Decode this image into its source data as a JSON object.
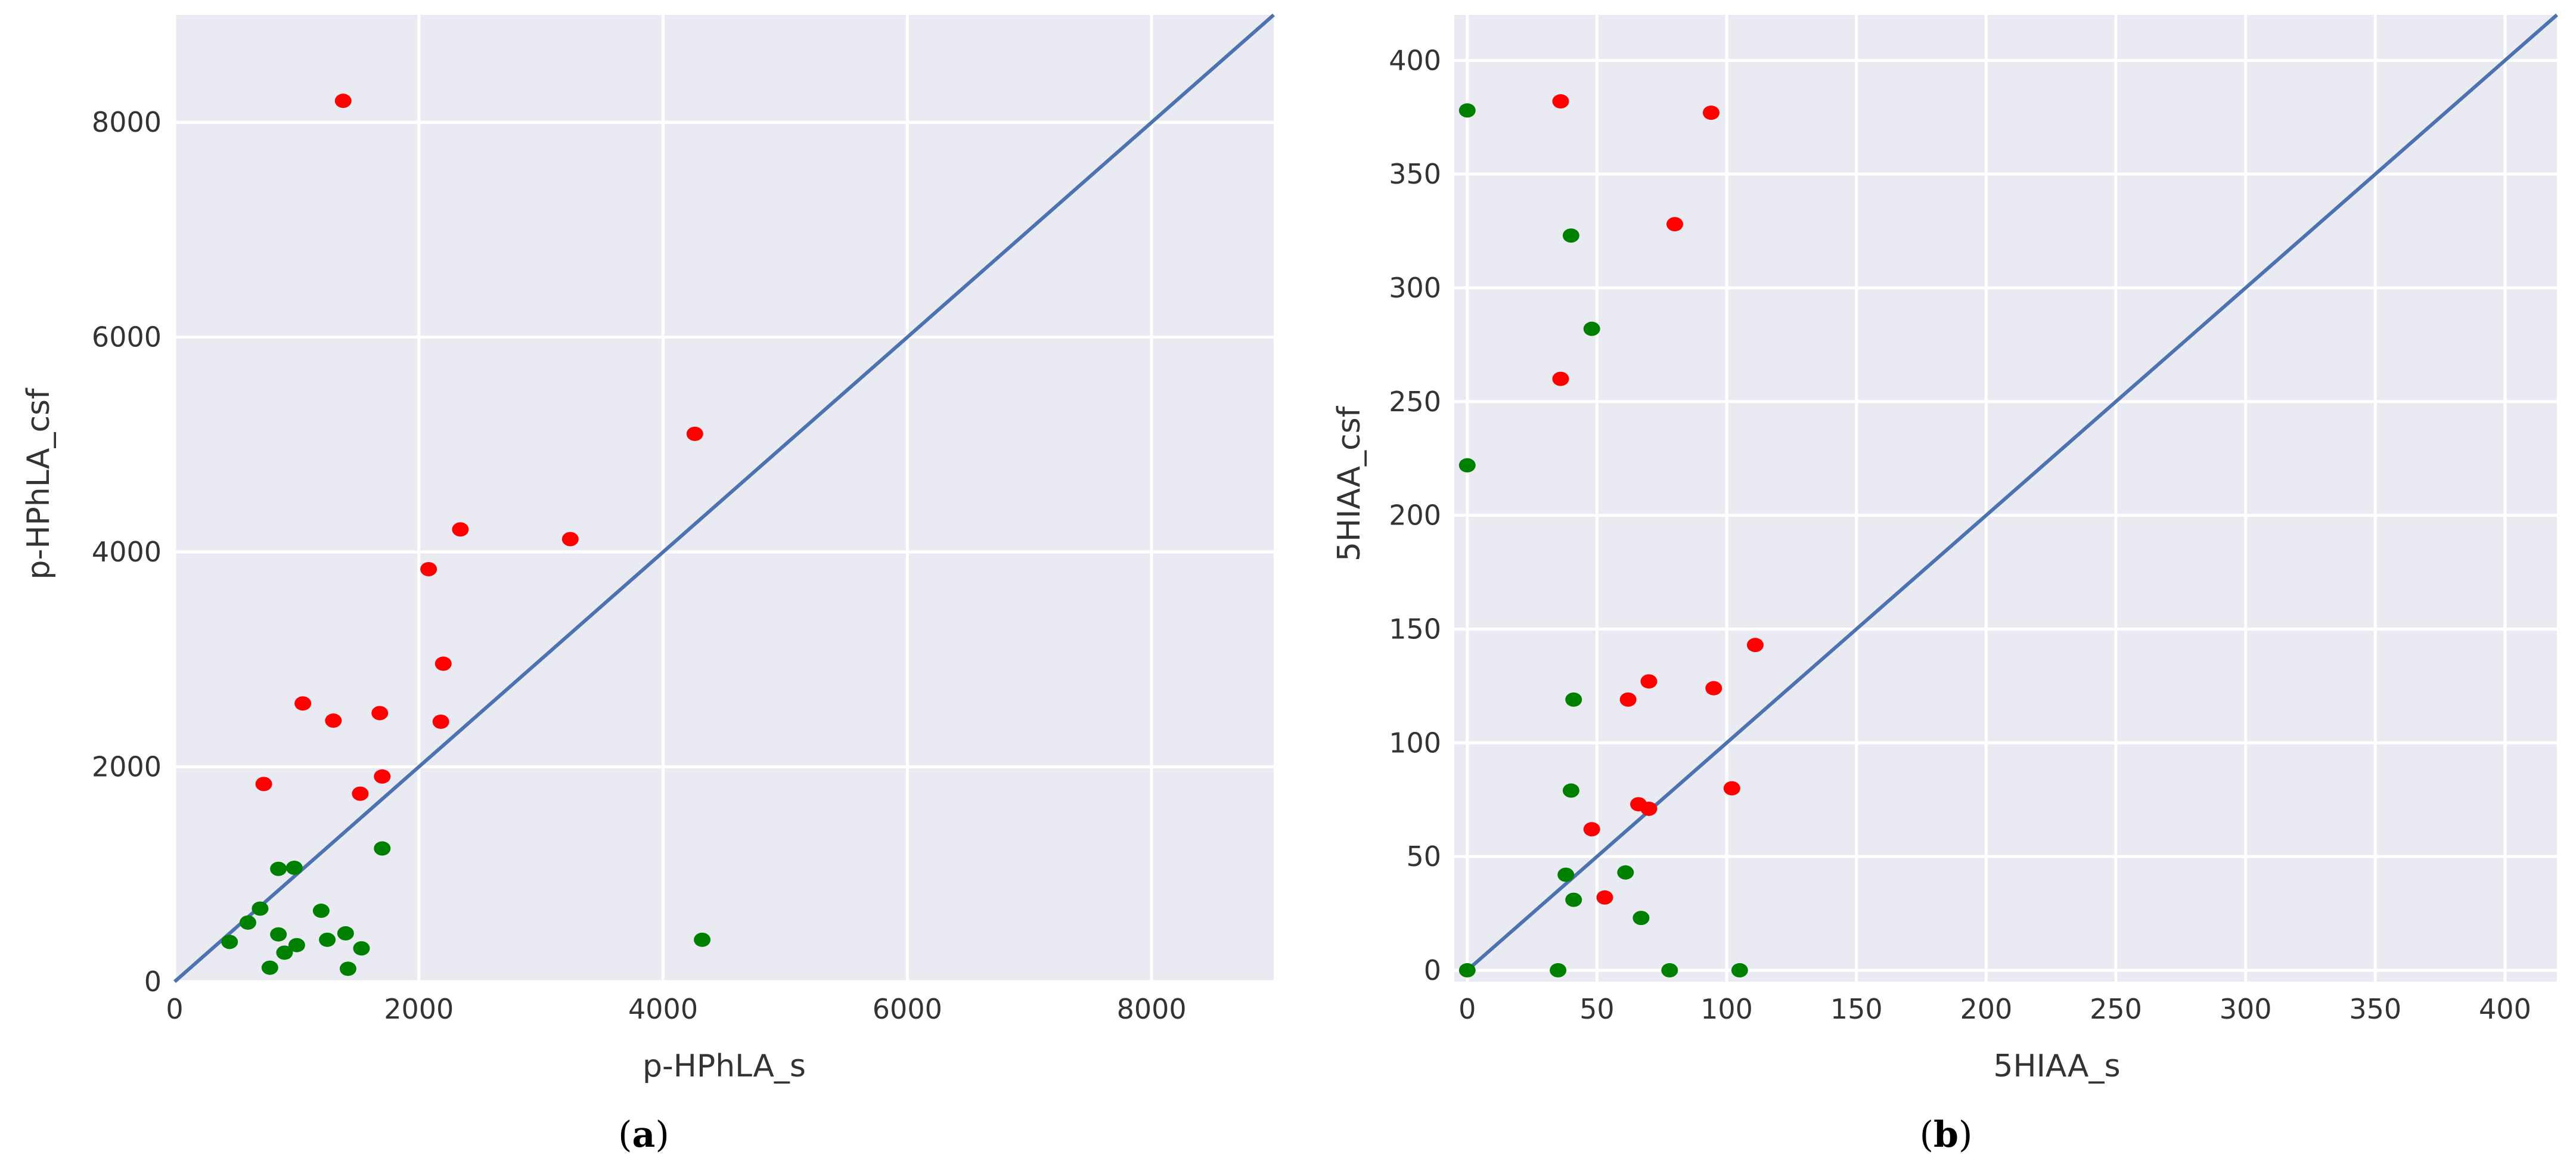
{
  "colors": {
    "background": "#eaeaf2",
    "grid": "#ffffff",
    "line": "#4c72b0",
    "above": "#ff0000",
    "below": "#008000"
  },
  "chart_data": [
    {
      "type": "scatter",
      "panel": {
        "open": "(",
        "letter": "a",
        "close": ")"
      },
      "xlabel": "p-HPhLA_s",
      "ylabel": "p-HPhLA_csf",
      "xlim": [
        0,
        9000
      ],
      "ylim": [
        0,
        9000
      ],
      "xticks": [
        0,
        2000,
        4000,
        6000,
        8000
      ],
      "yticks": [
        0,
        2000,
        4000,
        6000,
        8000
      ],
      "xtick_labels": [
        "0",
        "2000",
        "4000",
        "6000",
        "8000"
      ],
      "ytick_labels": [
        "0",
        "2000",
        "4000",
        "6000",
        "8000"
      ],
      "reference_line": {
        "from": [
          0,
          0
        ],
        "to": [
          9000,
          9000
        ]
      },
      "series": [
        {
          "name": "red",
          "color": "#ff0000",
          "x": [
            1380,
            4260,
            2340,
            3240,
            2080,
            2200,
            1050,
            1300,
            1680,
            2180,
            730,
            1700,
            1520
          ],
          "y": [
            8200,
            5100,
            4210,
            4120,
            3840,
            2960,
            2590,
            2430,
            2500,
            2420,
            1840,
            1910,
            1750
          ]
        },
        {
          "name": "green",
          "color": "#008000",
          "x": [
            1700,
            850,
            980,
            700,
            600,
            450,
            1200,
            850,
            1000,
            900,
            1250,
            1400,
            1530,
            4320,
            780,
            1420
          ],
          "y": [
            1240,
            1050,
            1060,
            680,
            550,
            370,
            660,
            440,
            340,
            270,
            390,
            450,
            310,
            390,
            130,
            120
          ]
        }
      ]
    },
    {
      "type": "scatter",
      "panel": {
        "open": "(",
        "letter": "b",
        "close": ")"
      },
      "xlabel": "5HIAA_s",
      "ylabel": "5HIAA_csf",
      "xlim": [
        -5,
        420
      ],
      "ylim": [
        -5,
        420
      ],
      "xticks": [
        0,
        50,
        100,
        150,
        200,
        250,
        300,
        350,
        400
      ],
      "yticks": [
        0,
        50,
        100,
        150,
        200,
        250,
        300,
        350,
        400
      ],
      "xtick_labels": [
        "0",
        "50",
        "100",
        "150",
        "200",
        "250",
        "300",
        "350",
        "400"
      ],
      "ytick_labels": [
        "0",
        "50",
        "100",
        "150",
        "200",
        "250",
        "300",
        "350",
        "400"
      ],
      "reference_line": {
        "from": [
          0,
          0
        ],
        "to": [
          420,
          420
        ]
      },
      "series": [
        {
          "name": "red",
          "color": "#ff0000",
          "x": [
            36,
            94,
            80,
            36,
            111,
            95,
            70,
            62,
            102,
            66,
            70,
            48,
            53
          ],
          "y": [
            382,
            377,
            328,
            260,
            143,
            124,
            127,
            119,
            80,
            73,
            71,
            62,
            32
          ]
        },
        {
          "name": "green",
          "color": "#008000",
          "x": [
            0,
            40,
            48,
            0,
            41,
            40,
            38,
            41,
            61,
            67,
            0,
            35,
            78,
            105
          ],
          "y": [
            378,
            323,
            282,
            222,
            119,
            79,
            42,
            31,
            43,
            23,
            0,
            0,
            0,
            0
          ]
        }
      ]
    }
  ]
}
